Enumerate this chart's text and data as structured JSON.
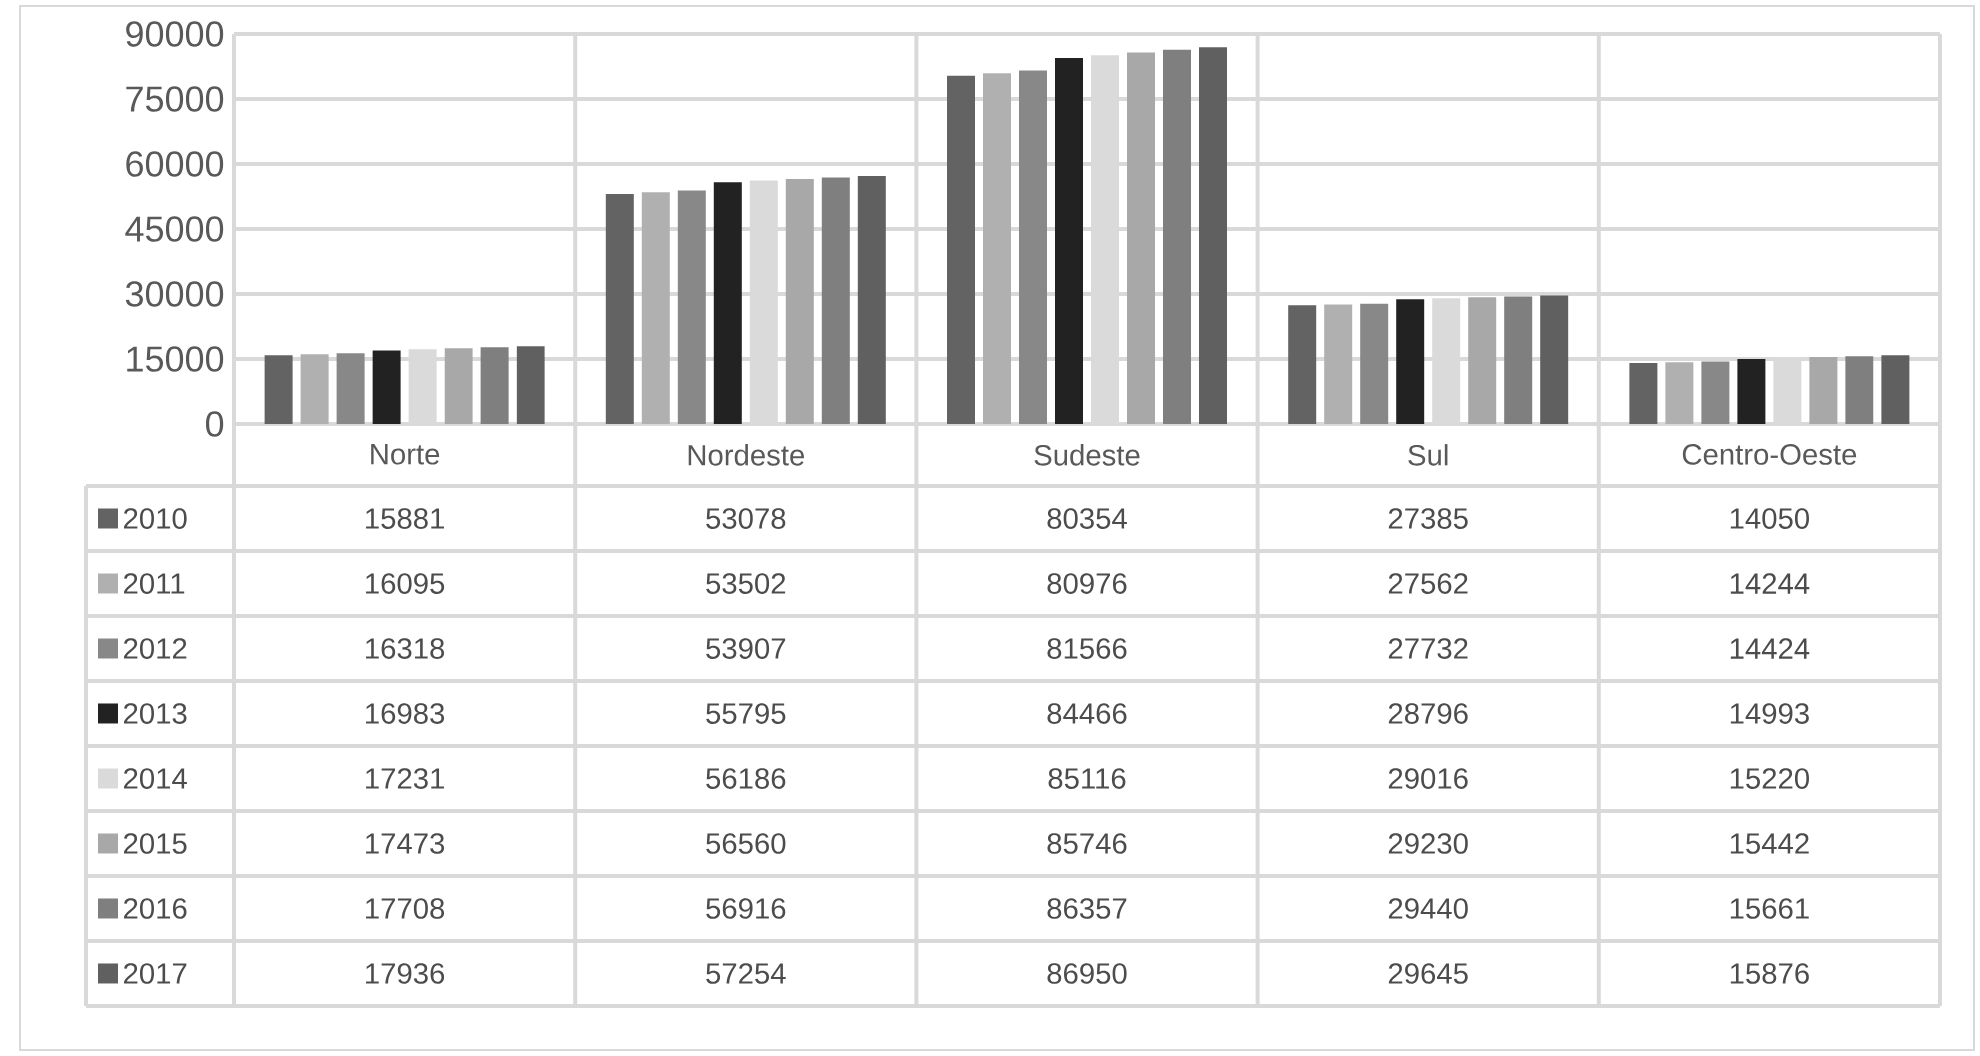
{
  "chart_data": {
    "type": "bar",
    "categories": [
      "Norte",
      "Nordeste",
      "Sudeste",
      "Sul",
      "Centro-Oeste"
    ],
    "series": [
      {
        "name": "2010",
        "color": "#636363",
        "values": [
          15881,
          53078,
          80354,
          27385,
          14050
        ]
      },
      {
        "name": "2011",
        "color": "#b0b0b0",
        "values": [
          16095,
          53502,
          80976,
          27562,
          14244
        ]
      },
      {
        "name": "2012",
        "color": "#888888",
        "values": [
          16318,
          53907,
          81566,
          27732,
          14424
        ]
      },
      {
        "name": "2013",
        "color": "#222222",
        "values": [
          16983,
          55795,
          84466,
          28796,
          14993
        ]
      },
      {
        "name": "2014",
        "color": "#dadada",
        "values": [
          17231,
          56186,
          85116,
          29016,
          15220
        ]
      },
      {
        "name": "2015",
        "color": "#a8a8a8",
        "values": [
          17473,
          56560,
          85746,
          29230,
          15442
        ]
      },
      {
        "name": "2016",
        "color": "#7f7f7f",
        "values": [
          17708,
          56916,
          86357,
          29440,
          15661
        ]
      },
      {
        "name": "2017",
        "color": "#606060",
        "values": [
          17936,
          57254,
          86950,
          29645,
          15876
        ]
      }
    ],
    "ylim": [
      0,
      90000
    ],
    "yticks": [
      0,
      15000,
      30000,
      45000,
      60000,
      75000,
      90000
    ],
    "grid": "y",
    "legend": "bottom",
    "data_labels": true
  }
}
